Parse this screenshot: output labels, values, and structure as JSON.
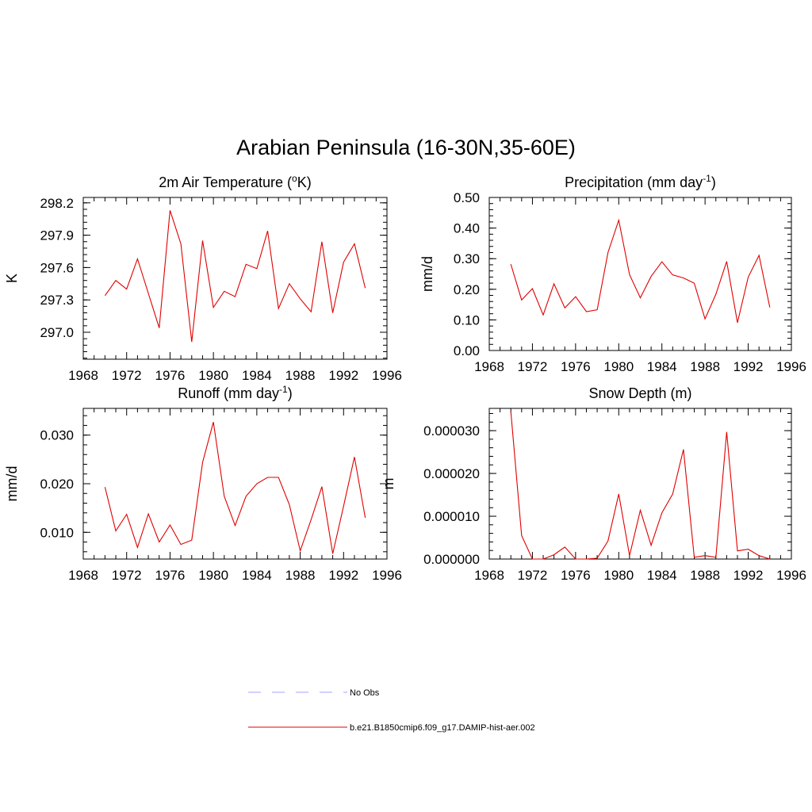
{
  "title": "Arabian Peninsula (16-30N,35-60E)",
  "legend": {
    "entries": [
      {
        "label": "No Obs",
        "color": "#a0a0ff",
        "dash": true
      },
      {
        "label": "b.e21.B1850cmip6.f09_g17.DAMIP-hist-aer.002",
        "color": "#e00000",
        "dash": false
      }
    ]
  },
  "chart_data": [
    {
      "type": "line",
      "title": "2m Air Temperature (°K)",
      "title_parts": {
        "pre": "2m Air Temperature (",
        "sup": "o",
        "post": "K)"
      },
      "ylabel": "K",
      "xlim": [
        1968,
        1996
      ],
      "ylim": [
        296.75,
        298.25
      ],
      "xticks": [
        1968,
        1972,
        1976,
        1980,
        1984,
        1988,
        1992,
        1996
      ],
      "xtick_labels": [
        "1968",
        "1972",
        "1976",
        "1980",
        "1984",
        "1988",
        "1992",
        "1996"
      ],
      "yticks": [
        297.0,
        297.3,
        297.6,
        297.9,
        298.2
      ],
      "ytick_labels": [
        "297.0",
        "297.3",
        "297.6",
        "297.9",
        "298.2"
      ],
      "series": [
        {
          "color": "#e00000",
          "x": [
            1970,
            1971,
            1972,
            1973,
            1974,
            1975,
            1976,
            1977,
            1978,
            1979,
            1980,
            1981,
            1982,
            1983,
            1984,
            1985,
            1986,
            1987,
            1988,
            1989,
            1990,
            1991,
            1992,
            1993,
            1994
          ],
          "y": [
            297.34,
            297.48,
            297.4,
            297.68,
            297.36,
            297.04,
            298.13,
            297.82,
            296.91,
            297.85,
            297.23,
            297.38,
            297.33,
            297.63,
            297.59,
            297.94,
            297.22,
            297.45,
            297.31,
            297.19,
            297.84,
            297.18,
            297.65,
            297.82,
            297.41
          ]
        }
      ]
    },
    {
      "type": "line",
      "title": "Precipitation (mm day-1)",
      "title_parts": {
        "pre": "Precipitation (mm day",
        "sup": "-1",
        "post": ")"
      },
      "ylabel": "mm/d",
      "xlim": [
        1968,
        1996
      ],
      "ylim": [
        0.0,
        0.5
      ],
      "xticks": [
        1968,
        1972,
        1976,
        1980,
        1984,
        1988,
        1992,
        1996
      ],
      "xtick_labels": [
        "1968",
        "1972",
        "1976",
        "1980",
        "1984",
        "1988",
        "1992",
        "1996"
      ],
      "yticks": [
        0.0,
        0.1,
        0.2,
        0.3,
        0.4,
        0.5
      ],
      "ytick_labels": [
        "0.00",
        "0.10",
        "0.20",
        "0.30",
        "0.40",
        "0.50"
      ],
      "series": [
        {
          "color": "#e00000",
          "x": [
            1970,
            1971,
            1972,
            1973,
            1974,
            1975,
            1976,
            1977,
            1978,
            1979,
            1980,
            1981,
            1982,
            1983,
            1984,
            1985,
            1986,
            1987,
            1988,
            1989,
            1990,
            1991,
            1992,
            1993,
            1994
          ],
          "y": [
            0.282,
            0.165,
            0.202,
            0.116,
            0.218,
            0.139,
            0.176,
            0.127,
            0.133,
            0.32,
            0.426,
            0.248,
            0.172,
            0.242,
            0.29,
            0.247,
            0.237,
            0.22,
            0.103,
            0.184,
            0.291,
            0.091,
            0.24,
            0.311,
            0.141
          ]
        }
      ]
    },
    {
      "type": "line",
      "title": "Runoff (mm day-1)",
      "title_parts": {
        "pre": "Runoff (mm day",
        "sup": "-1",
        "post": ")"
      },
      "ylabel": "mm/d",
      "xlim": [
        1968,
        1996
      ],
      "ylim": [
        0.0045,
        0.0355
      ],
      "xticks": [
        1968,
        1972,
        1976,
        1980,
        1984,
        1988,
        1992,
        1996
      ],
      "xtick_labels": [
        "1968",
        "1972",
        "1976",
        "1980",
        "1984",
        "1988",
        "1992",
        "1996"
      ],
      "yticks": [
        0.01,
        0.02,
        0.03
      ],
      "ytick_labels": [
        "0.010",
        "0.020",
        "0.030"
      ],
      "series": [
        {
          "color": "#e00000",
          "x": [
            1970,
            1971,
            1972,
            1973,
            1974,
            1975,
            1976,
            1977,
            1978,
            1979,
            1980,
            1981,
            1982,
            1983,
            1984,
            1985,
            1986,
            1987,
            1988,
            1989,
            1990,
            1991,
            1992,
            1993,
            1994
          ],
          "y": [
            0.0193,
            0.0103,
            0.0137,
            0.0069,
            0.0138,
            0.008,
            0.0115,
            0.0075,
            0.0084,
            0.0244,
            0.0327,
            0.0174,
            0.0114,
            0.0174,
            0.02,
            0.0213,
            0.0213,
            0.0157,
            0.0062,
            0.0126,
            0.0194,
            0.0056,
            0.0154,
            0.0255,
            0.013
          ]
        }
      ]
    },
    {
      "type": "line",
      "title": "Snow Depth (m)",
      "title_parts": {
        "pre": "Snow Depth (m)",
        "sup": "",
        "post": ""
      },
      "ylabel": "m",
      "xlim": [
        1968,
        1996
      ],
      "ylim": [
        0.0,
        3.52e-05
      ],
      "xticks": [
        1968,
        1972,
        1976,
        1980,
        1984,
        1988,
        1992,
        1996
      ],
      "xtick_labels": [
        "1968",
        "1972",
        "1976",
        "1980",
        "1984",
        "1988",
        "1992",
        "1996"
      ],
      "yticks": [
        0.0,
        1e-05,
        2e-05,
        3e-05
      ],
      "ytick_labels": [
        "0.000000",
        "0.000010",
        "0.000020",
        "0.000030"
      ],
      "series": [
        {
          "color": "#e00000",
          "x": [
            1970,
            1971,
            1972,
            1973,
            1974,
            1975,
            1976,
            1977,
            1978,
            1979,
            1980,
            1981,
            1982,
            1983,
            1984,
            1985,
            1986,
            1987,
            1988,
            1989,
            1990,
            1991,
            1992,
            1993,
            1994
          ],
          "y": [
            3.45e-05,
            5.5e-06,
            0.0,
            0.0,
            1e-06,
            2.8e-06,
            0.0,
            0.0,
            2e-07,
            4.2e-06,
            1.52e-05,
            8e-07,
            1.14e-05,
            3.2e-06,
            1.08e-05,
            1.52e-05,
            2.56e-05,
            4e-07,
            8e-07,
            4e-07,
            2.97e-05,
            1.9e-06,
            2.3e-06,
            8e-07,
            0.0
          ]
        }
      ]
    }
  ]
}
